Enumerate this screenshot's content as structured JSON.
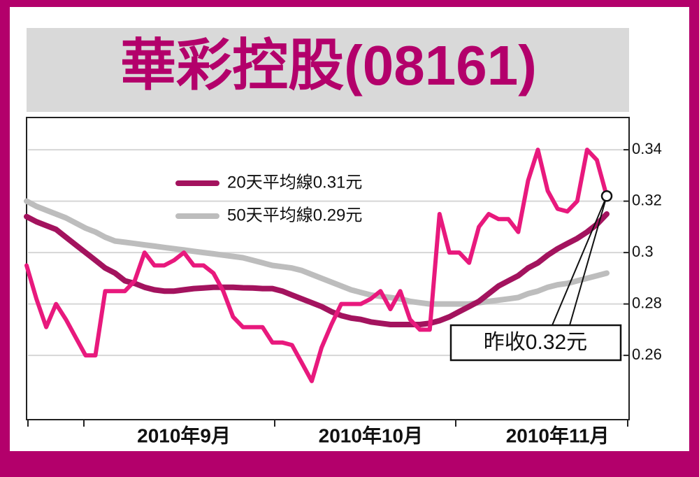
{
  "chart_data": {
    "type": "line",
    "title": "華彩控股(08161)",
    "categories": [
      null,
      null,
      null,
      null,
      null,
      null,
      null,
      null,
      null,
      null,
      null,
      null,
      null,
      null,
      null,
      null,
      "2010年9月",
      null,
      null,
      null,
      null,
      null,
      null,
      null,
      null,
      null,
      null,
      null,
      null,
      null,
      null,
      null,
      null,
      null,
      null,
      "2010年10月",
      null,
      null,
      null,
      null,
      null,
      null,
      null,
      null,
      null,
      null,
      null,
      null,
      null,
      null,
      null,
      null,
      null,
      null,
      "2010年11月",
      null,
      null,
      null,
      null,
      null
    ],
    "series": [
      {
        "name": "20天平均線0.31元",
        "color": "#a3135e",
        "width": 8,
        "values": [
          0.314,
          0.312,
          0.3105,
          0.309,
          0.306,
          0.303,
          0.3,
          0.297,
          0.294,
          0.292,
          0.289,
          0.288,
          0.2865,
          0.2855,
          0.285,
          0.285,
          0.2855,
          0.286,
          0.2862,
          0.2865,
          0.2865,
          0.2865,
          0.2863,
          0.2862,
          0.286,
          0.286,
          0.285,
          0.2835,
          0.282,
          0.2805,
          0.279,
          0.277,
          0.2755,
          0.2745,
          0.274,
          0.273,
          0.2725,
          0.272,
          0.272,
          0.272,
          0.272,
          0.2725,
          0.2735,
          0.275,
          0.277,
          0.279,
          0.281,
          0.284,
          0.287,
          0.289,
          0.291,
          0.294,
          0.296,
          0.299,
          0.3015,
          0.3035,
          0.3055,
          0.308,
          0.311,
          0.315
        ]
      },
      {
        "name": "50天平均線0.29元",
        "color": "#bdbdbd",
        "width": 8,
        "values": [
          0.32,
          0.318,
          0.3165,
          0.315,
          0.3135,
          0.3115,
          0.3095,
          0.308,
          0.306,
          0.3045,
          0.304,
          0.3035,
          0.303,
          0.3025,
          0.302,
          0.3015,
          0.301,
          0.3005,
          0.3,
          0.2995,
          0.299,
          0.2985,
          0.298,
          0.297,
          0.296,
          0.295,
          0.2945,
          0.294,
          0.293,
          0.2915,
          0.29,
          0.2885,
          0.287,
          0.2855,
          0.2845,
          0.2835,
          0.283,
          0.2825,
          0.282,
          0.281,
          0.2805,
          0.28,
          0.28,
          0.28,
          0.28,
          0.28,
          0.2805,
          0.281,
          0.2815,
          0.282,
          0.2825,
          0.284,
          0.285,
          0.2865,
          0.2875,
          0.288,
          0.289,
          0.29,
          0.291,
          0.292
        ]
      },
      {
        "color": "#e8197d",
        "width": 6,
        "values": [
          0.295,
          0.282,
          0.271,
          0.28,
          0.274,
          0.267,
          0.26,
          0.26,
          0.285,
          0.285,
          0.285,
          0.289,
          0.3,
          0.295,
          0.295,
          0.297,
          0.3,
          0.295,
          0.295,
          0.292,
          0.285,
          0.275,
          0.271,
          0.271,
          0.271,
          0.265,
          0.265,
          0.264,
          0.257,
          0.25,
          0.263,
          0.272,
          0.28,
          0.28,
          0.28,
          0.282,
          0.285,
          0.278,
          0.285,
          0.274,
          0.27,
          0.27,
          0.315,
          0.3,
          0.3,
          0.296,
          0.31,
          0.315,
          0.313,
          0.313,
          0.308,
          0.328,
          0.34,
          0.324,
          0.317,
          0.316,
          0.32,
          0.34,
          0.336,
          0.322
        ]
      }
    ],
    "annotation": "昨收0.32元",
    "ylim": [
      0.235,
      0.352
    ],
    "yticks": [
      0.26,
      0.28,
      0.3,
      0.32,
      0.34
    ],
    "grid": true
  }
}
